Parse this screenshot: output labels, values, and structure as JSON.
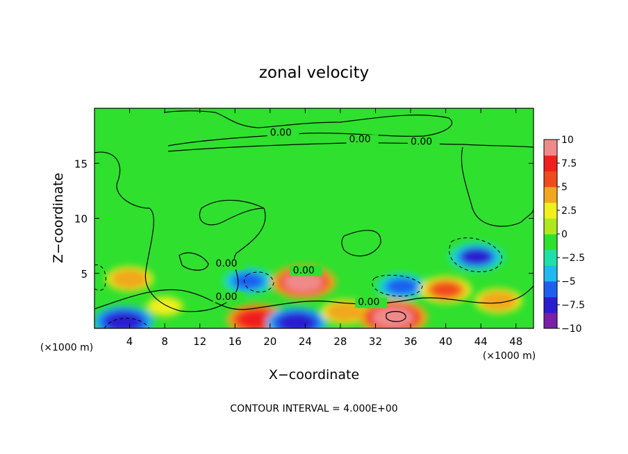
{
  "chart_data": {
    "type": "heatmap",
    "title": "zonal velocity",
    "xlabel": "X−coordinate",
    "ylabel": "Z−coordinate",
    "x_unit_left": "(×1000 m)",
    "x_unit_right": "(×1000 m)",
    "footer": "CONTOUR INTERVAL = 4.000E+00",
    "xlim": [
      0,
      50
    ],
    "ylim": [
      0,
      20
    ],
    "x_ticks": [
      4,
      8,
      12,
      16,
      20,
      24,
      28,
      32,
      36,
      40,
      44,
      48
    ],
    "x_tick_labels": [
      "4",
      "8",
      "12",
      "16",
      "20",
      "24",
      "28",
      "32",
      "36",
      "40",
      "44",
      "48"
    ],
    "y_ticks": [
      5,
      10,
      15
    ],
    "y_tick_labels": [
      "5",
      "10",
      "15"
    ],
    "colorbar": {
      "range": [
        -10,
        10
      ],
      "ticks": [
        10,
        7.5,
        5,
        2.5,
        0,
        -2.5,
        -5,
        -7.5,
        -10
      ],
      "tick_labels": [
        "10",
        "7.5",
        "5",
        "2.5",
        "0",
        "−2.5",
        "−5",
        "−7.5",
        "−10"
      ],
      "colors": [
        "#7a1fa8",
        "#2a1fd0",
        "#1f5ff0",
        "#1fb8f0",
        "#1fe0a8",
        "#2fe02f",
        "#b0e81f",
        "#f0f01f",
        "#f0a81f",
        "#f04a1f",
        "#f01f1f",
        "#f08a8a"
      ]
    },
    "contour_labels": [
      {
        "text": "0.00",
        "x": 20.0,
        "z": 17.5
      },
      {
        "text": "0.00",
        "x": 29.0,
        "z": 16.9
      },
      {
        "text": "0.00",
        "x": 36.0,
        "z": 16.7
      },
      {
        "text": "0.00",
        "x": 13.8,
        "z": 5.6
      },
      {
        "text": "0.00",
        "x": 22.6,
        "z": 5.0
      },
      {
        "text": "0.00",
        "x": 30.0,
        "z": 2.1
      },
      {
        "text": "0.00",
        "x": 13.8,
        "z": 2.6
      }
    ],
    "features": [
      {
        "sign": "negative",
        "x": 3.3,
        "z": 0.6,
        "amplitude": -8
      },
      {
        "sign": "positive",
        "x": 4.0,
        "z": 4.5,
        "amplitude": 5
      },
      {
        "sign": "positive",
        "x": 8.0,
        "z": 2.0,
        "amplitude": 3
      },
      {
        "sign": "negative",
        "x": 17.5,
        "z": 4.3,
        "amplitude": -6
      },
      {
        "sign": "positive",
        "x": 18.5,
        "z": 0.8,
        "amplitude": 8
      },
      {
        "sign": "negative",
        "x": 23.0,
        "z": 0.5,
        "amplitude": -8
      },
      {
        "sign": "positive",
        "x": 23.8,
        "z": 4.2,
        "amplitude": 9
      },
      {
        "sign": "positive",
        "x": 28.5,
        "z": 1.5,
        "amplitude": 5
      },
      {
        "sign": "positive",
        "x": 34.0,
        "z": 1.0,
        "amplitude": 10
      },
      {
        "sign": "negative",
        "x": 35.0,
        "z": 3.8,
        "amplitude": -6
      },
      {
        "sign": "positive",
        "x": 40.0,
        "z": 3.5,
        "amplitude": 6
      },
      {
        "sign": "negative",
        "x": 43.5,
        "z": 6.5,
        "amplitude": -7
      },
      {
        "sign": "positive",
        "x": 46.0,
        "z": 2.5,
        "amplitude": 5
      }
    ],
    "grid": false,
    "legend": "colorbar-right"
  }
}
